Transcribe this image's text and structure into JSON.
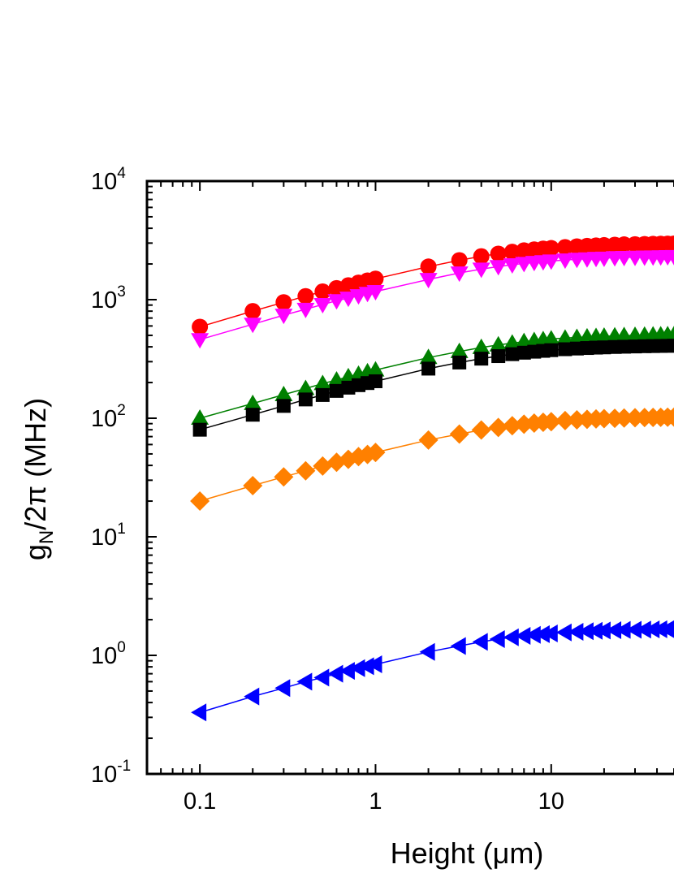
{
  "chart_data": {
    "type": "scatter",
    "title": "",
    "xlabel": "Height (μm)",
    "ylabel": {
      "base": "g",
      "sub": "N",
      "rest": "/2π (MHz)"
    },
    "xscale": "log",
    "yscale": "log",
    "xlim": [
      0.05,
      50
    ],
    "ylim": [
      0.1,
      10000
    ],
    "xticks": [
      {
        "value": 0.1,
        "label": "0.1"
      },
      {
        "value": 1,
        "label": "1"
      },
      {
        "value": 10,
        "label": "10"
      }
    ],
    "yticks": [
      {
        "value": 0.1,
        "base": "10",
        "exp": "-1"
      },
      {
        "value": 1,
        "base": "10",
        "exp": "0"
      },
      {
        "value": 10,
        "base": "10",
        "exp": "1"
      },
      {
        "value": 100,
        "base": "10",
        "exp": "2"
      },
      {
        "value": 1000,
        "base": "10",
        "exp": "3"
      },
      {
        "value": 10000,
        "base": "10",
        "exp": "4"
      }
    ],
    "x": [
      0.1,
      0.2,
      0.3,
      0.4,
      0.5,
      0.6,
      0.7,
      0.8,
      0.9,
      1,
      2,
      3,
      4,
      5,
      6,
      7,
      8,
      9,
      10,
      12,
      14,
      16,
      18,
      20,
      23,
      26,
      30,
      34,
      38,
      42,
      46,
      50
    ],
    "series": [
      {
        "marker": "circle",
        "color": "#ff0000",
        "values": [
          590,
          800,
          950,
          1070,
          1170,
          1250,
          1320,
          1390,
          1450,
          1500,
          1900,
          2150,
          2320,
          2440,
          2530,
          2600,
          2650,
          2690,
          2720,
          2770,
          2810,
          2840,
          2860,
          2880,
          2900,
          2920,
          2930,
          2940,
          2950,
          2960,
          2965,
          2970
        ]
      },
      {
        "marker": "triangle-down",
        "color": "#ff00ff",
        "values": [
          460,
          620,
          740,
          830,
          910,
          980,
          1030,
          1080,
          1130,
          1170,
          1480,
          1680,
          1810,
          1900,
          1970,
          2020,
          2060,
          2090,
          2120,
          2160,
          2190,
          2210,
          2230,
          2240,
          2260,
          2270,
          2280,
          2290,
          2295,
          2300,
          2305,
          2310
        ]
      },
      {
        "marker": "triangle-up",
        "color": "#008000",
        "values": [
          100,
          133,
          158,
          178,
          196,
          210,
          224,
          235,
          246,
          255,
          325,
          365,
          395,
          415,
          430,
          443,
          452,
          460,
          466,
          474,
          480,
          485,
          489,
          492,
          495,
          498,
          500,
          502,
          504,
          505,
          506,
          507
        ]
      },
      {
        "marker": "square",
        "color": "#000000",
        "values": [
          80,
          107,
          127,
          144,
          157,
          170,
          181,
          190,
          198,
          205,
          262,
          295,
          318,
          334,
          347,
          357,
          364,
          370,
          375,
          382,
          387,
          391,
          394,
          396,
          399,
          401,
          403,
          405,
          406,
          407,
          408,
          409
        ]
      },
      {
        "marker": "diamond",
        "color": "#ff8000",
        "values": [
          20,
          27,
          32,
          36,
          39.5,
          42.5,
          45,
          47.5,
          49.5,
          51.5,
          65.5,
          73.5,
          79.5,
          83.5,
          86.5,
          89,
          91,
          92.5,
          93.5,
          95.5,
          96.8,
          97.8,
          98.6,
          99.2,
          99.9,
          100.4,
          100.9,
          101.3,
          101.6,
          101.8,
          102,
          102.2
        ]
      },
      {
        "marker": "triangle-left",
        "color": "#0000ff",
        "values": [
          0.33,
          0.45,
          0.53,
          0.6,
          0.65,
          0.7,
          0.74,
          0.78,
          0.81,
          0.84,
          1.07,
          1.2,
          1.3,
          1.37,
          1.42,
          1.46,
          1.49,
          1.51,
          1.53,
          1.56,
          1.58,
          1.6,
          1.61,
          1.62,
          1.63,
          1.64,
          1.645,
          1.65,
          1.655,
          1.66,
          1.663,
          1.665
        ]
      }
    ],
    "grid": false,
    "legend": "none"
  }
}
